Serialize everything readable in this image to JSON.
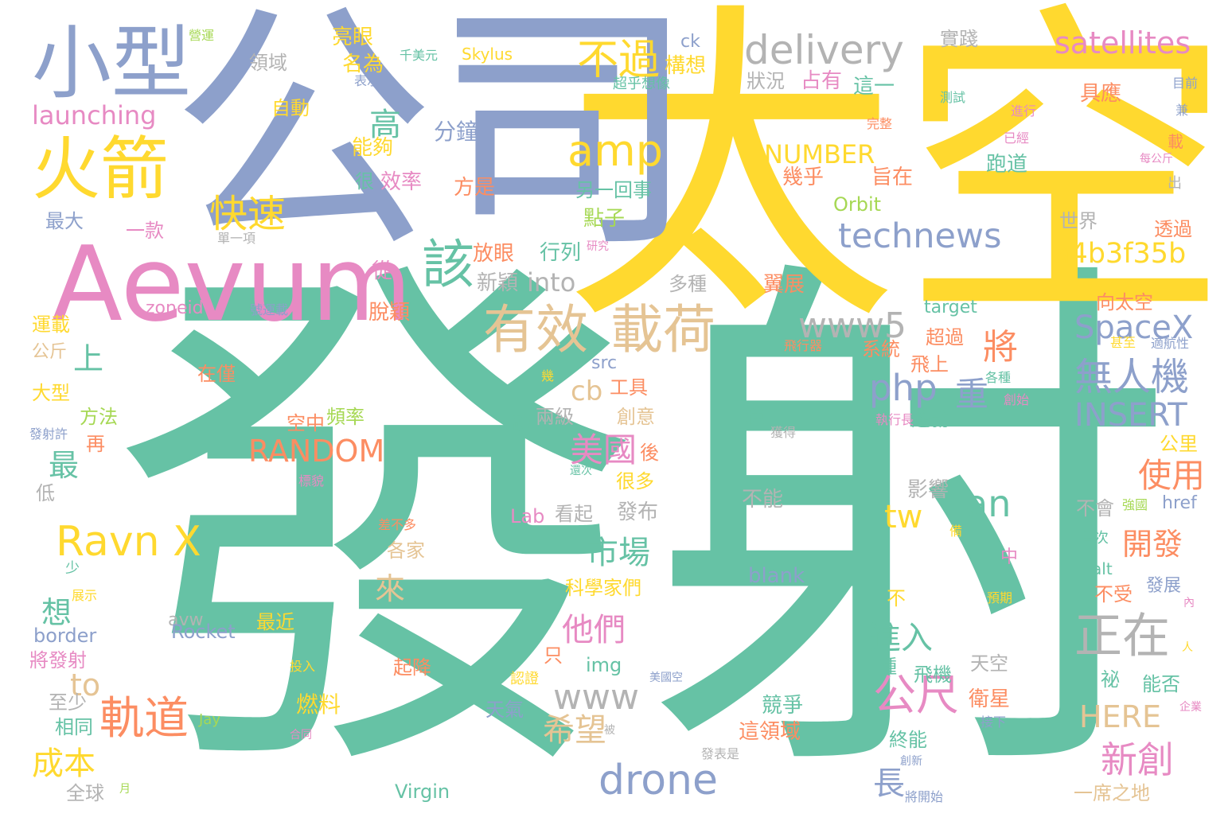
{
  "palette": {
    "teal": "#66c2a5",
    "yellow": "#ffd92f",
    "periwinkle": "#8da0cb",
    "pink": "#e78ac3",
    "orange": "#fc8d62",
    "lime": "#a6d854",
    "tan": "#e5c494",
    "gray": "#b3b3b3"
  },
  "words": [
    {
      "text": "發射",
      "color": "teal"
    },
    {
      "text": "太空",
      "color": "yellow"
    },
    {
      "text": "公司",
      "color": "periwinkle"
    },
    {
      "text": "Aevum",
      "color": "pink"
    },
    {
      "text": "小型",
      "color": "periwinkle"
    },
    {
      "text": "火箭",
      "color": "yellow"
    },
    {
      "text": "delivery",
      "color": "gray"
    },
    {
      "text": "satellites",
      "color": "pink"
    },
    {
      "text": "不過",
      "color": "yellow"
    },
    {
      "text": "amp",
      "color": "yellow"
    },
    {
      "text": "technews",
      "color": "periwinkle"
    },
    {
      "text": "a4b3f35b",
      "color": "yellow"
    },
    {
      "text": "有效",
      "color": "tan"
    },
    {
      "text": "載荷",
      "color": "tan"
    },
    {
      "text": "快速",
      "color": "yellow"
    },
    {
      "text": "該",
      "color": "teal"
    },
    {
      "text": "www5",
      "color": "gray"
    },
    {
      "text": "SpaceX",
      "color": "periwinkle"
    },
    {
      "text": "無人機",
      "color": "periwinkle"
    },
    {
      "text": "php",
      "color": "periwinkle"
    },
    {
      "text": "將",
      "color": "orange"
    },
    {
      "text": "重",
      "color": "periwinkle"
    },
    {
      "text": "INSERT",
      "color": "periwinkle"
    },
    {
      "text": "正在",
      "color": "gray"
    },
    {
      "text": "RANDOM",
      "color": "orange"
    },
    {
      "text": "Ravn X",
      "color": "yellow"
    },
    {
      "text": "tw",
      "color": "yellow"
    },
    {
      "text": "an",
      "color": "teal"
    },
    {
      "text": "市場",
      "color": "teal"
    },
    {
      "text": "美國",
      "color": "pink"
    },
    {
      "text": "使用",
      "color": "orange"
    },
    {
      "text": "開發",
      "color": "orange"
    },
    {
      "text": "他們",
      "color": "pink"
    },
    {
      "text": "進入",
      "color": "teal"
    },
    {
      "text": "公尺",
      "color": "pink"
    },
    {
      "text": "軌道",
      "color": "orange"
    },
    {
      "text": "drone",
      "color": "periwinkle"
    },
    {
      "text": "www",
      "color": "gray"
    },
    {
      "text": "希望",
      "color": "tan"
    },
    {
      "text": "新創",
      "color": "pink"
    },
    {
      "text": "HERE",
      "color": "tan"
    },
    {
      "text": "成本",
      "color": "yellow"
    },
    {
      "text": "NUMBER",
      "color": "yellow"
    },
    {
      "text": "into",
      "color": "gray"
    },
    {
      "text": "高",
      "color": "teal"
    },
    {
      "text": "分鐘",
      "color": "periwinkle"
    },
    {
      "text": "launching",
      "color": "pink"
    },
    {
      "text": "最",
      "color": "teal"
    },
    {
      "text": "上",
      "color": "teal"
    },
    {
      "text": "想",
      "color": "teal"
    },
    {
      "text": "來",
      "color": "tan"
    },
    {
      "text": "to",
      "color": "tan"
    },
    {
      "text": "cb",
      "color": "tan"
    },
    {
      "text": "長",
      "color": "periwinkle"
    },
    {
      "text": "亮眼",
      "color": "yellow"
    },
    {
      "text": "名為",
      "color": "yellow"
    },
    {
      "text": "自動",
      "color": "yellow"
    },
    {
      "text": "能夠",
      "color": "yellow"
    },
    {
      "text": "效率",
      "color": "pink"
    },
    {
      "text": "方是",
      "color": "orange"
    },
    {
      "text": "領域",
      "color": "gray"
    },
    {
      "text": "構想",
      "color": "yellow"
    },
    {
      "text": "占有",
      "color": "pink"
    },
    {
      "text": "狀況",
      "color": "gray"
    },
    {
      "text": "這一",
      "color": "teal"
    },
    {
      "text": "實踐",
      "color": "gray"
    },
    {
      "text": "具應",
      "color": "orange"
    },
    {
      "text": "幾乎",
      "color": "orange"
    },
    {
      "text": "旨在",
      "color": "orange"
    },
    {
      "text": "跑道",
      "color": "teal"
    },
    {
      "text": "世界",
      "color": "gray"
    },
    {
      "text": "透過",
      "color": "orange"
    },
    {
      "text": "點子",
      "color": "lime"
    },
    {
      "text": "另一回事",
      "color": "teal"
    },
    {
      "text": "放眼",
      "color": "orange"
    },
    {
      "text": "行列",
      "color": "teal"
    },
    {
      "text": "新穎",
      "color": "gray"
    },
    {
      "text": "多種",
      "color": "gray"
    },
    {
      "text": "翼展",
      "color": "orange"
    },
    {
      "text": "脫穎",
      "color": "orange"
    },
    {
      "text": "從",
      "color": "pink"
    },
    {
      "text": "最大",
      "color": "periwinkle"
    },
    {
      "text": "一款",
      "color": "pink"
    },
    {
      "text": "很",
      "color": "teal"
    },
    {
      "text": "Orbit",
      "color": "lime"
    },
    {
      "text": "Skylus",
      "color": "yellow"
    },
    {
      "text": "千美元",
      "color": "teal"
    },
    {
      "text": "ck",
      "color": "periwinkle"
    },
    {
      "text": "系統",
      "color": "orange"
    },
    {
      "text": "超過",
      "color": "orange"
    },
    {
      "text": "飛上",
      "color": "orange"
    },
    {
      "text": "向太空",
      "color": "orange"
    },
    {
      "text": "工具",
      "color": "orange"
    },
    {
      "text": "創意",
      "color": "tan"
    },
    {
      "text": "蓬勃",
      "color": "teal"
    },
    {
      "text": "一種",
      "color": "teal"
    },
    {
      "text": "兩級",
      "color": "gray"
    },
    {
      "text": "磅",
      "color": "teal"
    },
    {
      "text": "頻率",
      "color": "lime"
    },
    {
      "text": "空中",
      "color": "orange"
    },
    {
      "text": "在僅",
      "color": "orange"
    },
    {
      "text": "公斤",
      "color": "tan"
    },
    {
      "text": "運載",
      "color": "yellow"
    },
    {
      "text": "大型",
      "color": "yellow"
    },
    {
      "text": "方法",
      "color": "lime"
    },
    {
      "text": "再",
      "color": "orange"
    },
    {
      "text": "低",
      "color": "gray"
    },
    {
      "text": "後",
      "color": "orange"
    },
    {
      "text": "很多",
      "color": "yellow"
    },
    {
      "text": "影響",
      "color": "gray"
    },
    {
      "text": "不能",
      "color": "gray"
    },
    {
      "text": "看起",
      "color": "gray"
    },
    {
      "text": "發布",
      "color": "gray"
    },
    {
      "text": "各家",
      "color": "tan"
    },
    {
      "text": "科學家們",
      "color": "yellow"
    },
    {
      "text": "不",
      "color": "yellow"
    },
    {
      "text": "不受",
      "color": "orange"
    },
    {
      "text": "發展",
      "color": "periwinkle"
    },
    {
      "text": "公里",
      "color": "yellow"
    },
    {
      "text": "不會",
      "color": "gray"
    },
    {
      "text": "首次",
      "color": "teal"
    },
    {
      "text": "href",
      "color": "periwinkle"
    },
    {
      "text": "alt",
      "color": "teal"
    },
    {
      "text": "blank",
      "color": "periwinkle"
    },
    {
      "text": "Lab",
      "color": "pink"
    },
    {
      "text": "avw",
      "color": "gray"
    },
    {
      "text": "Rocket",
      "color": "periwinkle"
    },
    {
      "text": "border",
      "color": "periwinkle"
    },
    {
      "text": "將發射",
      "color": "pink"
    },
    {
      "text": "最近",
      "color": "yellow"
    },
    {
      "text": "起降",
      "color": "orange"
    },
    {
      "text": "只",
      "color": "orange"
    },
    {
      "text": "img",
      "color": "teal"
    },
    {
      "text": "種",
      "color": "teal"
    },
    {
      "text": "飛機",
      "color": "teal"
    },
    {
      "text": "天空",
      "color": "gray"
    },
    {
      "text": "祕",
      "color": "teal"
    },
    {
      "text": "能否",
      "color": "teal"
    },
    {
      "text": "衛星",
      "color": "orange"
    },
    {
      "text": "天氣",
      "color": "periwinkle"
    },
    {
      "text": "燃料",
      "color": "yellow"
    },
    {
      "text": "競爭",
      "color": "teal"
    },
    {
      "text": "這領域",
      "color": "orange"
    },
    {
      "text": "終能",
      "color": "teal"
    },
    {
      "text": "相同",
      "color": "teal"
    },
    {
      "text": "至少",
      "color": "gray"
    },
    {
      "text": "全球",
      "color": "gray"
    },
    {
      "text": "Jay",
      "color": "lime"
    },
    {
      "text": "Virgin",
      "color": "teal"
    },
    {
      "text": "一席之地",
      "color": "tan"
    },
    {
      "text": "zoneid",
      "color": "pink"
    },
    {
      "text": "號運載",
      "color": "periwinkle"
    },
    {
      "text": "target",
      "color": "teal"
    },
    {
      "text": "src",
      "color": "periwinkle"
    },
    {
      "text": "少",
      "color": "teal"
    },
    {
      "text": "中",
      "color": "pink"
    },
    {
      "text": "表示",
      "color": "periwinkle"
    },
    {
      "text": "超乎想像",
      "color": "teal"
    },
    {
      "text": "測試",
      "color": "teal"
    },
    {
      "text": "進行",
      "color": "pink"
    },
    {
      "text": "完整",
      "color": "orange"
    },
    {
      "text": "已經",
      "color": "pink"
    },
    {
      "text": "目前",
      "color": "periwinkle"
    },
    {
      "text": "兼",
      "color": "periwinkle"
    },
    {
      "text": "載",
      "color": "orange"
    },
    {
      "text": "每公斤",
      "color": "pink"
    },
    {
      "text": "出",
      "color": "gray"
    },
    {
      "text": "研究",
      "color": "pink"
    },
    {
      "text": "單一項",
      "color": "gray"
    },
    {
      "text": "營運",
      "color": "lime"
    },
    {
      "text": "飛行器",
      "color": "orange"
    },
    {
      "text": "甚至",
      "color": "yellow"
    },
    {
      "text": "適航性",
      "color": "periwinkle"
    },
    {
      "text": "幾",
      "color": "yellow"
    },
    {
      "text": "各種",
      "color": "teal"
    },
    {
      "text": "創始",
      "color": "pink"
    },
    {
      "text": "執行長",
      "color": "pink"
    },
    {
      "text": "獲得",
      "color": "gray"
    },
    {
      "text": "發射許",
      "color": "periwinkle"
    },
    {
      "text": "標貌",
      "color": "pink"
    },
    {
      "text": "還次",
      "color": "teal"
    },
    {
      "text": "強國",
      "color": "lime"
    },
    {
      "text": "差不多",
      "color": "orange"
    },
    {
      "text": "備",
      "color": "yellow"
    },
    {
      "text": "展示",
      "color": "yellow"
    },
    {
      "text": "預期",
      "color": "yellow"
    },
    {
      "text": "內",
      "color": "pink"
    },
    {
      "text": "人",
      "color": "yellow"
    },
    {
      "text": "投入",
      "color": "yellow"
    },
    {
      "text": "認證",
      "color": "yellow"
    },
    {
      "text": "美國空",
      "color": "periwinkle"
    },
    {
      "text": "企業",
      "color": "pink"
    },
    {
      "text": "接下",
      "color": "periwinkle"
    },
    {
      "text": "被",
      "color": "gray"
    },
    {
      "text": "合同",
      "color": "pink"
    },
    {
      "text": "發表是",
      "color": "gray"
    },
    {
      "text": "創新",
      "color": "periwinkle"
    },
    {
      "text": "將開始",
      "color": "periwinkle"
    },
    {
      "text": "月",
      "color": "lime"
    }
  ]
}
